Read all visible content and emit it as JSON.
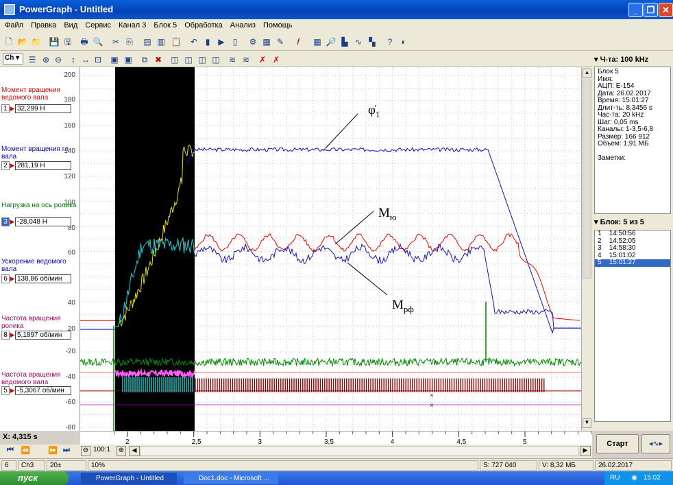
{
  "window": {
    "title": "PowerGraph - Untitled"
  },
  "menu": [
    "Файл",
    "Правка",
    "Вид",
    "Сервис",
    "Канал 3",
    "Блок 5",
    "Обработка",
    "Анализ",
    "Помощь"
  ],
  "toolbar": {
    "ch_combo": "Ch"
  },
  "yticks": [
    "200",
    "180",
    "160",
    "140",
    "120",
    "100",
    "80",
    "60",
    "40",
    "20",
    "0",
    "-20",
    "-40",
    "-60",
    "-80"
  ],
  "channels": [
    {
      "label": "Момент вращения ведомого вала",
      "num": "1",
      "value": "32,299 Н",
      "color": "#e00000"
    },
    {
      "label": "Момент вращения гл вала",
      "num": "2",
      "value": "281,19 Н",
      "color": "#0000c0"
    },
    {
      "label": "Нагрузка на ось ролика",
      "num": "3",
      "value": "-28,048 Н",
      "color": "#008000"
    },
    {
      "label": "Ускорение ведомого вала",
      "num": "6",
      "value": "138,86 об/мин",
      "color": "#0000c0"
    },
    {
      "label": "Частота вращения ролика",
      "num": "8",
      "value": "5,1897 об/мин",
      "color": "#b00060"
    },
    {
      "label": "Частота вращения ведомого вала",
      "num": "5",
      "value": "-5,3067 об/мин",
      "color": "#b00060"
    }
  ],
  "cursor_x": "X: 4,315 s",
  "xticks": [
    "2",
    "2,5",
    "3",
    "3,5",
    "4",
    "4,5",
    "5"
  ],
  "annotations": {
    "phi": "φ̇",
    "phi_sub": "1",
    "mu": "М",
    "mu_sub": "ю",
    "mrf": "М",
    "mrf_sub": "рф"
  },
  "right": {
    "freq_combo": "Ч-та: 100 kHz",
    "info": [
      "Блок 5",
      "Имя:",
      "АЦП: E-154",
      "Дата: 26.02.2017",
      "Время: 15:01:27",
      "Длит-ть: 8,3456 s",
      "Час-та: 20 kHz",
      "Шаг: 0,05 ms",
      "Каналы: 1-3,5-6,8",
      "Размер: 166 912",
      "Объем: 1,91 МБ",
      "",
      "Заметки:"
    ],
    "block_combo": "Блок: 5 из 5",
    "blocks": [
      {
        "n": "1",
        "t": "14:50:56"
      },
      {
        "n": "2",
        "t": "14:52:05"
      },
      {
        "n": "3",
        "t": "14:58:30"
      },
      {
        "n": "4",
        "t": "15:01:02"
      },
      {
        "n": "5",
        "t": "15:01:27"
      }
    ],
    "start_btn": "Старт"
  },
  "zoom": "100:1",
  "status": {
    "s1": "6",
    "s2": "Ch3",
    "s3": "20±",
    "s4": "10%",
    "s5": "S: 727 040",
    "s6": "V: 8,32 МБ",
    "s7": "26.02.2017"
  },
  "taskbar": {
    "start": "пуск",
    "task1": "PowerGraph - Untitled",
    "task2": "Doc1.doc - Microsoft ...",
    "lang": "RU",
    "time": "15:02"
  },
  "colors": {
    "red": "#ff0000",
    "blue": "#1010c0",
    "green": "#008a00",
    "yellow": "#e8e000",
    "cyan": "#20d0d0",
    "magenta": "#ff60ff",
    "darkred": "#8b0000"
  }
}
